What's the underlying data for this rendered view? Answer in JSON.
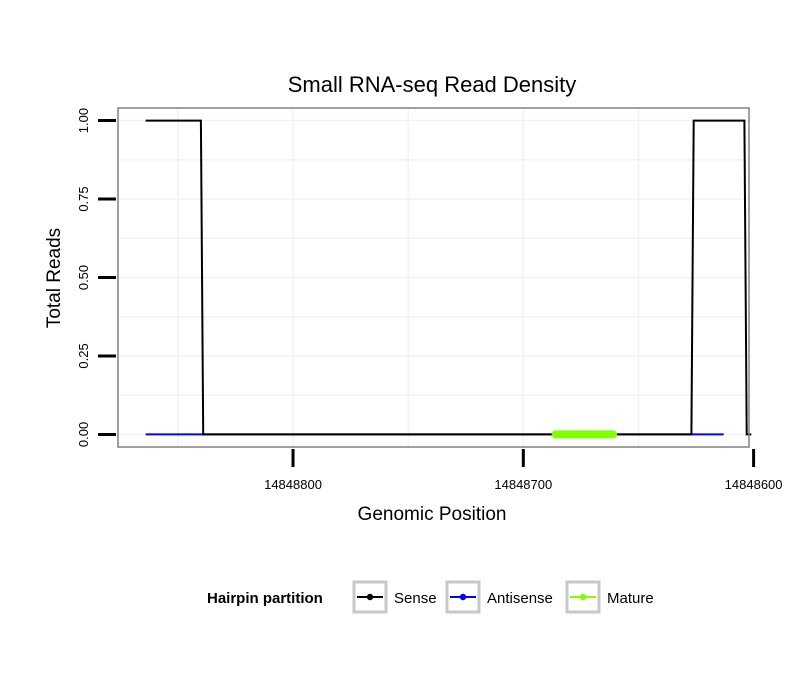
{
  "chart_data": {
    "type": "line",
    "title": "Small RNA-seq Read Density",
    "xlabel": "Genomic Position",
    "ylabel": "Total Reads",
    "xlim": [
      14848876,
      14848602
    ],
    "x_reversed": true,
    "ylim": [
      -0.04,
      1.04
    ],
    "x_ticks": [
      14848800,
      14848700,
      14848600
    ],
    "x_tick_labels": [
      "14848800",
      "14848700",
      "14848600"
    ],
    "y_ticks": [
      0,
      0.25,
      0.5,
      0.75,
      1
    ],
    "y_tick_labels": [
      "0.00",
      "0.25",
      "0.50",
      "0.75",
      "1.00"
    ],
    "grid": true,
    "legend": {
      "title": "Hairpin partition",
      "position": "bottom",
      "entries": [
        {
          "name": "Sense",
          "color": "#000000"
        },
        {
          "name": "Antisense",
          "color": "#0000ff"
        },
        {
          "name": "Mature",
          "color": "#7fff00"
        }
      ]
    },
    "series": [
      {
        "name": "Antisense",
        "color": "#0000ff",
        "x": [
          14848864,
          14848613
        ],
        "y": [
          0,
          0
        ]
      },
      {
        "name": "Sense",
        "color": "#000000",
        "x": [
          14848864,
          14848840,
          14848839,
          14848627,
          14848626,
          14848604,
          14848603,
          14848601
        ],
        "y": [
          1,
          1,
          0,
          0,
          1,
          1,
          0,
          0
        ]
      },
      {
        "name": "Mature",
        "color": "#7fff00",
        "x": [
          14848686,
          14848661
        ],
        "y": [
          0,
          0
        ]
      }
    ]
  }
}
